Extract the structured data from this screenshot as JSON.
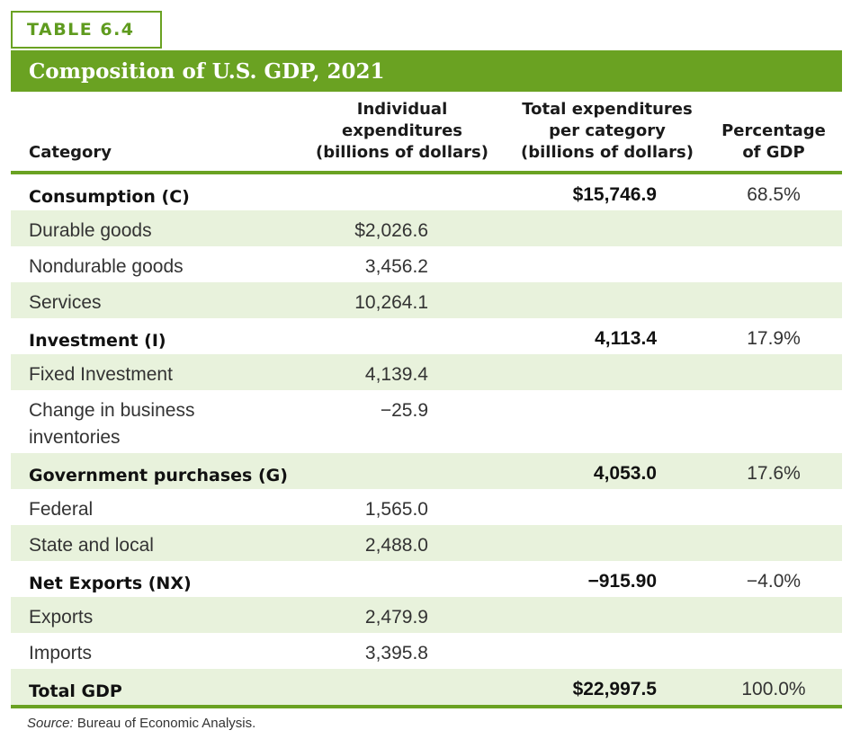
{
  "table_label": "TABLE 6.4",
  "title": "Composition of U.S. GDP, 2021",
  "columns": {
    "category": "Category",
    "individual": [
      "Individual",
      "expenditures",
      "(billions of dollars)"
    ],
    "total": [
      "Total expenditures",
      "per category",
      "(billions of dollars)"
    ],
    "percentage": [
      "Percentage",
      "of GDP"
    ]
  },
  "rows": [
    {
      "category": "Consumption (C)",
      "individual": "",
      "total": "$15,746.9",
      "percentage": "68.5%"
    },
    {
      "category": "Durable goods",
      "individual": "$2,026.6",
      "total": "",
      "percentage": ""
    },
    {
      "category": "Nondurable goods",
      "individual": "3,456.2",
      "total": "",
      "percentage": ""
    },
    {
      "category": "Services",
      "individual": "10,264.1",
      "total": "",
      "percentage": ""
    },
    {
      "category": "Investment (I)",
      "individual": "",
      "total": "4,113.4",
      "percentage": "17.9%"
    },
    {
      "category": "Fixed Investment",
      "individual": "4,139.4",
      "total": "",
      "percentage": ""
    },
    {
      "category": "Change in business inventories",
      "individual": "−25.9",
      "total": "",
      "percentage": ""
    },
    {
      "category": "Government purchases (G)",
      "individual": "",
      "total": "4,053.0",
      "percentage": "17.6%"
    },
    {
      "category": "Federal",
      "individual": "1,565.0",
      "total": "",
      "percentage": ""
    },
    {
      "category": "State and local",
      "individual": "2,488.0",
      "total": "",
      "percentage": ""
    },
    {
      "category": "Net Exports (NX)",
      "individual": "",
      "total": "−915.90",
      "percentage": "−4.0%"
    },
    {
      "category": "Exports",
      "individual": "2,479.9",
      "total": "",
      "percentage": ""
    },
    {
      "category": "Imports",
      "individual": "3,395.8",
      "total": "",
      "percentage": ""
    },
    {
      "category": "Total GDP",
      "individual": "",
      "total": "$22,997.5",
      "percentage": "100.0%"
    }
  ],
  "source_label": "Source:",
  "source_text": "Bureau of Economic Analysis."
}
